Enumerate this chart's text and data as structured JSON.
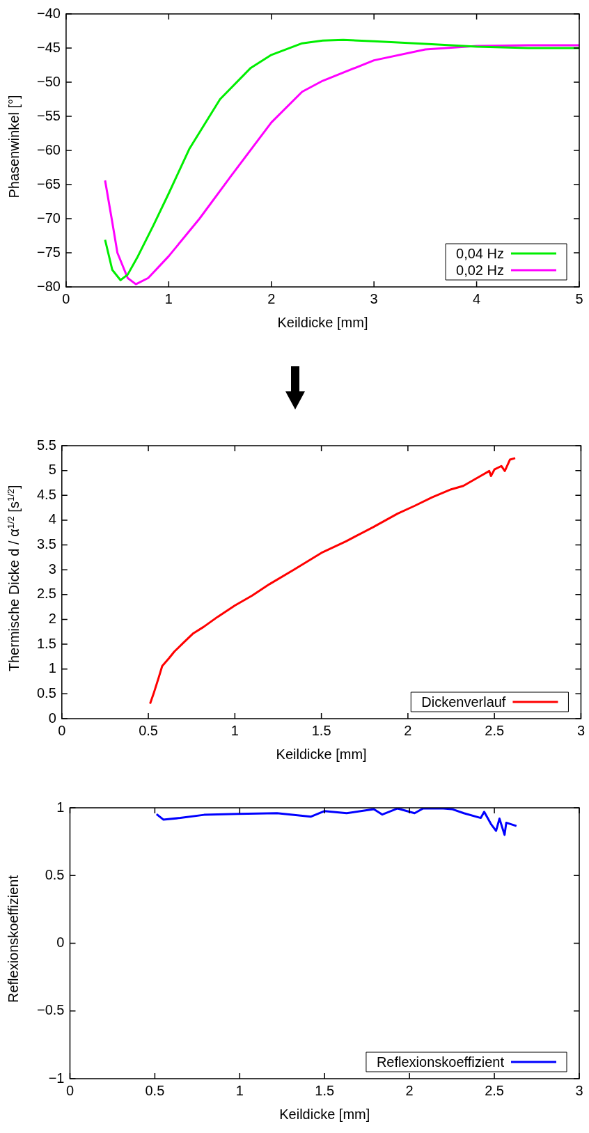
{
  "chart_data": [
    {
      "type": "line",
      "xlabel": "Keildicke [mm]",
      "ylabel": "Phasenwinkel [°]",
      "xlim": [
        0,
        5
      ],
      "xticks": [
        0,
        1,
        2,
        3,
        4,
        5
      ],
      "ylim": [
        -80,
        -40
      ],
      "yticks": [
        {
          "value": -80,
          "label": "−80"
        },
        {
          "value": -75,
          "label": "−75"
        },
        {
          "value": -70,
          "label": "−70"
        },
        {
          "value": -65,
          "label": "−65"
        },
        {
          "value": -60,
          "label": "−60"
        },
        {
          "value": -55,
          "label": "−55"
        },
        {
          "value": -50,
          "label": "−50"
        },
        {
          "value": -45,
          "label": "−45"
        },
        {
          "value": -40,
          "label": "−40"
        }
      ],
      "grid": false,
      "legend": "bottom right",
      "marker": "none",
      "line_style": "solid",
      "series": [
        {
          "name": "0,04 Hz",
          "color": "#00ee00",
          "x": [
            0.38,
            0.45,
            0.53,
            0.6,
            0.7,
            0.85,
            1,
            1.2,
            1.5,
            1.8,
            2,
            2.3,
            2.5,
            2.7,
            3,
            3.5,
            4,
            4.5,
            5
          ],
          "values": [
            -73.1,
            -77.5,
            -79,
            -78.2,
            -75.5,
            -71,
            -66.3,
            -59.8,
            -52.5,
            -47.9,
            -46,
            -44.3,
            -43.9,
            -43.8,
            -44,
            -44.4,
            -44.8,
            -45,
            -45
          ]
        },
        {
          "name": "0,02 Hz",
          "color": "#ff00ff",
          "x": [
            0.38,
            0.45,
            0.5,
            0.6,
            0.68,
            0.8,
            1,
            1.3,
            1.6,
            2,
            2.3,
            2.5,
            3,
            3.5,
            4,
            4.5,
            5
          ],
          "values": [
            -64.4,
            -70.5,
            -75,
            -78.7,
            -79.6,
            -78.7,
            -75.5,
            -70,
            -63.9,
            -55.9,
            -51.4,
            -49.8,
            -46.8,
            -45.2,
            -44.7,
            -44.6,
            -44.6
          ]
        }
      ]
    },
    {
      "type": "line",
      "xlabel": "Keildicke [mm]",
      "ylabel": "Thermische Dicke  d / α$^{1/2}$  [s$^{1/2}$]",
      "xlim": [
        0,
        3
      ],
      "xticks": [
        0,
        0.5,
        1,
        1.5,
        2,
        2.5,
        3
      ],
      "ylim": [
        0,
        5.5
      ],
      "yticks": [
        0,
        0.5,
        1,
        1.5,
        2,
        2.5,
        3,
        3.5,
        4,
        4.5,
        5,
        5.5
      ],
      "grid": false,
      "legend": "bottom right",
      "marker": "none",
      "line_style": "solid",
      "series": [
        {
          "name": "Dickenverlauf",
          "color": "#ff0000",
          "x": [
            0.51,
            0.53,
            0.56,
            0.58,
            0.62,
            0.65,
            0.7,
            0.76,
            0.82,
            0.9,
            1.0,
            1.1,
            1.2,
            1.34,
            1.5,
            1.64,
            1.8,
            1.94,
            2.04,
            2.14,
            2.25,
            2.32,
            2.42,
            2.47,
            2.48,
            2.5,
            2.54,
            2.56,
            2.59,
            2.62
          ],
          "values": [
            0.3,
            0.5,
            0.83,
            1.06,
            1.22,
            1.35,
            1.52,
            1.72,
            1.85,
            2.05,
            2.28,
            2.48,
            2.71,
            3.0,
            3.34,
            3.57,
            3.86,
            4.13,
            4.29,
            4.46,
            4.62,
            4.69,
            4.89,
            4.99,
            4.89,
            5.02,
            5.09,
            4.99,
            5.22,
            5.25
          ]
        }
      ]
    },
    {
      "type": "line",
      "xlabel": "Keildicke [mm]",
      "ylabel": "Reflexionskoeffizient",
      "xlim": [
        0,
        3
      ],
      "xticks": [
        0,
        0.5,
        1,
        1.5,
        2,
        2.5,
        3
      ],
      "ylim": [
        -1,
        1
      ],
      "yticks": [
        {
          "value": -1,
          "label": "−1"
        },
        {
          "value": -0.5,
          "label": "−0.5"
        },
        0,
        0.5,
        1
      ],
      "grid": false,
      "legend": "bottom right",
      "marker": "none",
      "line_style": "solid",
      "series": [
        {
          "name": "Reflexionskoeffizient",
          "color": "#0000ff",
          "x": [
            0.51,
            0.55,
            0.65,
            0.79,
            0.99,
            1.22,
            1.42,
            1.5,
            1.63,
            1.79,
            1.84,
            1.93,
            2.03,
            2.08,
            2.2,
            2.25,
            2.32,
            2.42,
            2.44,
            2.48,
            2.51,
            2.53,
            2.56,
            2.57,
            2.63
          ],
          "values": [
            0.953,
            0.913,
            0.925,
            0.948,
            0.955,
            0.96,
            0.935,
            0.976,
            0.96,
            0.99,
            0.95,
            0.995,
            0.96,
            0.995,
            0.995,
            0.99,
            0.96,
            0.925,
            0.97,
            0.88,
            0.83,
            0.92,
            0.8,
            0.89,
            0.866
          ]
        }
      ]
    }
  ]
}
